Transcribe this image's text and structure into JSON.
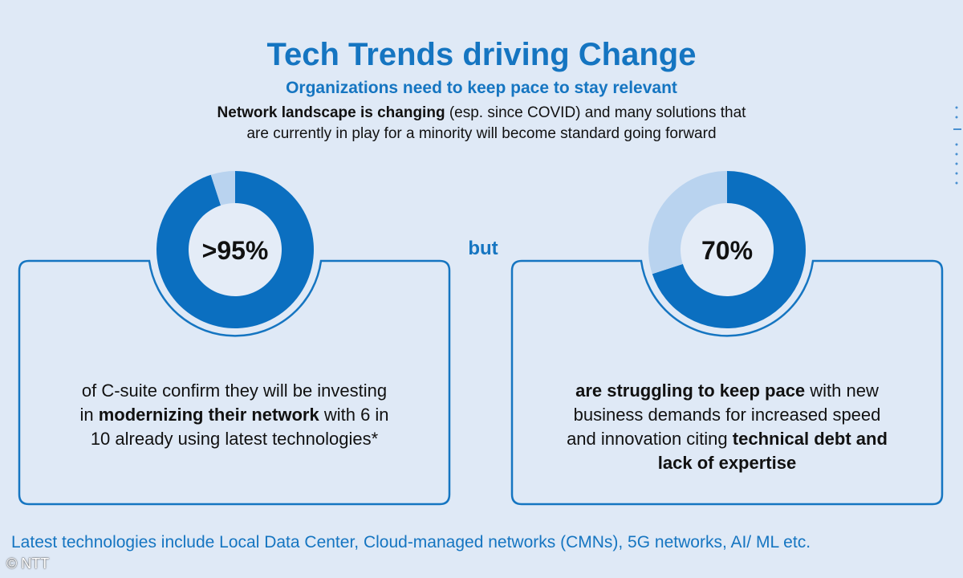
{
  "header": {
    "title": "Tech Trends driving Change",
    "subtitle": "Organizations need to keep pace to stay relevant",
    "intro_bold": "Network landscape is changing",
    "intro_rest_line1": " (esp. since COVID) and many solutions that",
    "intro_line2": "are currently in play for a minority will become standard going forward"
  },
  "connector": "but",
  "left_card": {
    "stat": ">95%",
    "donut_fraction": 0.95,
    "text_line1": "of C-suite confirm they will be investing",
    "text_line2_pre": "in ",
    "text_line2_bold": "modernizing their network",
    "text_line2_post": " with 6 in",
    "text_line3": "10 already using latest technologies*"
  },
  "right_card": {
    "stat": "70%",
    "donut_fraction": 0.7,
    "text_line1_bold": "are struggling to keep pace",
    "text_line1_post": " with new",
    "text_line2": "business demands for increased speed",
    "text_line3_pre": "and innovation citing ",
    "text_line3_bold": "technical debt and",
    "text_line4_bold": "lack of expertise"
  },
  "footnote": "Latest technologies include Local Data Center, Cloud-managed networks (CMNs), 5G networks, AI/ ML etc.",
  "copyright": "© NTT",
  "colors": {
    "accent": "#1575c1",
    "donut_fill": "#0b6fc0",
    "donut_rest": "#b9d3ef",
    "background": "#dfe9f6"
  }
}
